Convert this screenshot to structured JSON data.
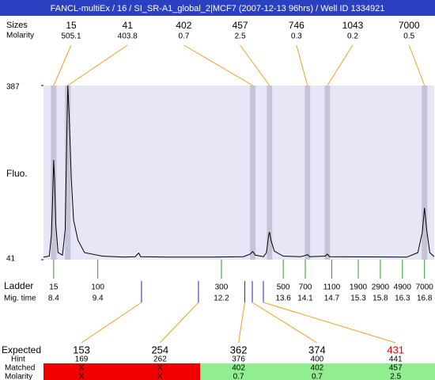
{
  "header": {
    "title": "FANCL-multiEx / 16 / SI_SR-A1_global_2|MCF7 (2007-12-13 96hrs) / Well ID 1334921"
  },
  "peaks": {
    "sizes_label": "Sizes",
    "molarity_label": "Molarity",
    "sizes": [
      15,
      41,
      402,
      457,
      746,
      1043,
      7000
    ],
    "molarity": [
      505.1,
      403.8,
      0.7,
      2.5,
      0.3,
      0.2,
      0.5
    ],
    "positions": [
      8.4,
      8.72,
      12.91,
      13.29,
      14.15,
      14.6,
      16.8
    ]
  },
  "chart_data": {
    "type": "line",
    "y_label": "Fluo.",
    "x": [
      8.17,
      8.3,
      8.35,
      8.38,
      8.4,
      8.42,
      8.45,
      8.5,
      8.6,
      8.66,
      8.7,
      8.72,
      8.75,
      8.8,
      8.85,
      8.95,
      9.1,
      9.5,
      10.0,
      10.25,
      10.3,
      10.33,
      10.37,
      11.0,
      12.0,
      12.7,
      12.85,
      12.91,
      12.97,
      13.15,
      13.22,
      13.27,
      13.29,
      13.32,
      13.4,
      13.6,
      14.0,
      14.12,
      14.15,
      14.2,
      14.55,
      14.6,
      14.65,
      16.4,
      16.65,
      16.75,
      16.8,
      16.85,
      16.92,
      17.02
    ],
    "values": [
      46,
      48,
      90,
      170,
      239,
      200,
      110,
      55,
      50,
      100,
      300,
      387,
      330,
      200,
      120,
      80,
      55,
      48,
      46,
      47,
      52,
      54,
      47,
      46,
      46,
      47,
      52,
      57,
      50,
      47,
      55,
      90,
      96,
      80,
      58,
      48,
      47,
      50,
      51,
      47,
      48,
      52,
      47,
      46,
      55,
      95,
      144,
      100,
      55,
      47
    ],
    "color": "#000000",
    "xlim": [
      8.17,
      17.02
    ],
    "ylim": [
      41,
      387
    ],
    "yticks": [
      41,
      387
    ]
  },
  "ladder": {
    "label": "Ladder",
    "mig_time_label": "Mig. time",
    "sizes": [
      15,
      100,
      300,
      500,
      700,
      1100,
      1900,
      2900,
      4900,
      7000
    ],
    "mig_time": [
      8.4,
      9.4,
      12.2,
      13.6,
      14.1,
      14.7,
      15.3,
      15.8,
      16.3,
      16.8
    ]
  },
  "expected": {
    "label": "Expected",
    "hint_label": "Hint",
    "matched_label": "Matched",
    "molarity_label": "Molarity",
    "values": [
      153,
      254,
      362,
      374,
      431
    ],
    "colors": [
      "#000000",
      "#000000",
      "#000000",
      "#000000",
      "#e00000"
    ],
    "positions": [
      10.39,
      11.68,
      12.73,
      12.9,
      13.15
    ],
    "hint": [
      169,
      262,
      376,
      400,
      441
    ],
    "matched": [
      "X",
      "X",
      402,
      402,
      457
    ],
    "molarity": [
      "X",
      "X",
      0.7,
      0.7,
      2.5
    ],
    "match_colors": [
      "#f00000",
      "#f00000",
      "#90ee90",
      "#90ee90",
      "#90ee90"
    ]
  }
}
